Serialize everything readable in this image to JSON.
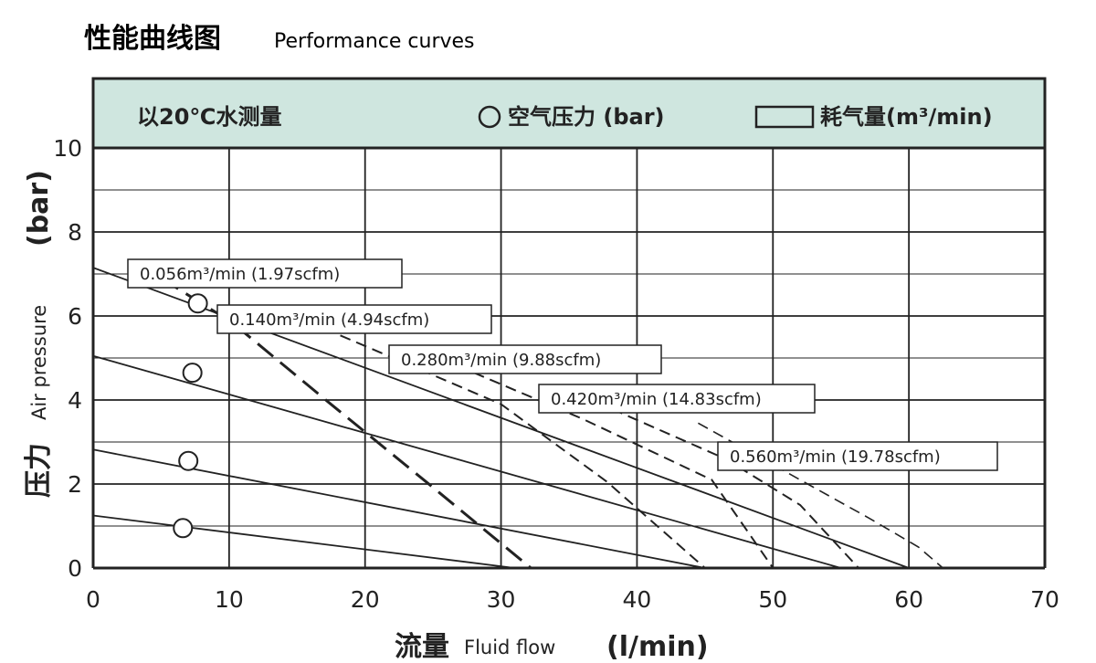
{
  "title": {
    "cn": "性能曲线图",
    "en": "Performance curves"
  },
  "legend": {
    "condition": "以20℃水测量",
    "circle_label": "空气压力 (bar)",
    "rect_label": "耗气量(m³/min)",
    "band_color": "#cfe6df"
  },
  "xaxis": {
    "label_cn": "流量",
    "label_en": "Fluid flow",
    "unit": "(l/min)"
  },
  "yaxis": {
    "label_cn": "压力",
    "label_en": "Air pressure",
    "unit": "(bar)"
  },
  "chart_data": {
    "type": "line",
    "title": "性能曲线图 Performance curves",
    "xlabel": "流量 Fluid flow (l/min)",
    "ylabel": "压力 Air pressure (bar)",
    "xlim": [
      0,
      70
    ],
    "ylim": [
      0,
      10
    ],
    "xticks": [
      "0",
      "10",
      "20",
      "30",
      "40",
      "50",
      "60",
      "70"
    ],
    "yticks": [
      "0",
      "2",
      "4",
      "6",
      "8",
      "10"
    ],
    "grid": true,
    "legend_position": "top band",
    "air_pressure_curves": [
      {
        "points": [
          [
            0,
            7.15
          ],
          [
            60,
            0
          ]
        ],
        "marker": [
          7.7,
          6.3
        ]
      },
      {
        "points": [
          [
            0,
            5.05
          ],
          [
            55,
            0
          ]
        ],
        "marker": [
          7.3,
          4.65
        ]
      },
      {
        "points": [
          [
            0,
            2.82
          ],
          [
            45,
            0
          ]
        ],
        "marker": [
          7.0,
          2.55
        ]
      },
      {
        "points": [
          [
            0,
            1.25
          ],
          [
            31,
            0
          ]
        ],
        "marker": [
          6.6,
          0.95
        ]
      }
    ],
    "air_consumption_curves": [
      {
        "label": "0.056m³/min (1.97scfm)",
        "points": [
          [
            5.0,
            6.9
          ],
          [
            10.2,
            5.85
          ],
          [
            17.3,
            3.95
          ],
          [
            24.5,
            2.05
          ],
          [
            32.2,
            0
          ]
        ]
      },
      {
        "label": "0.140m³/min (4.94scfm)",
        "points": [
          [
            17.0,
            5.7
          ],
          [
            30.0,
            3.9
          ],
          [
            37.8,
            2.05
          ],
          [
            45.0,
            0
          ]
        ]
      },
      {
        "label": "0.280m³/min (9.88scfm)",
        "points": [
          [
            28.0,
            4.65
          ],
          [
            36.0,
            3.55
          ],
          [
            45.5,
            2.1
          ],
          [
            50.0,
            0
          ]
        ]
      },
      {
        "label": "0.420m³/min (14.83scfm)",
        "points": [
          [
            37.0,
            3.95
          ],
          [
            46.5,
            2.6
          ],
          [
            52.0,
            1.5
          ],
          [
            56.3,
            0
          ]
        ]
      },
      {
        "label": "0.560m³/min (19.78scfm)",
        "points": [
          [
            44.5,
            3.45
          ],
          [
            57.0,
            1.2
          ],
          [
            60.7,
            0.5
          ],
          [
            62.5,
            0
          ]
        ]
      }
    ]
  }
}
